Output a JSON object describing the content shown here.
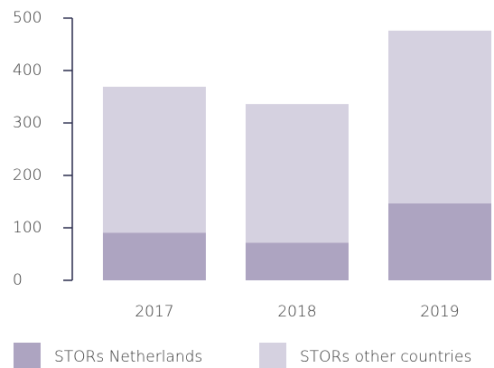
{
  "chart_data": {
    "type": "stacked_bar",
    "categories": [
      "2017",
      "2018",
      "2019"
    ],
    "series": [
      {
        "name": "STORs Netherlands",
        "color": "#ada4c1",
        "values": [
          91,
          72,
          147
        ]
      },
      {
        "name": "STORs other countries",
        "color": "#d5d1e0",
        "values": [
          278,
          264,
          329
        ]
      }
    ],
    "ylim": [
      0,
      500
    ],
    "yticks": [
      0,
      100,
      200,
      300,
      400,
      500
    ],
    "legend": "bottom"
  }
}
